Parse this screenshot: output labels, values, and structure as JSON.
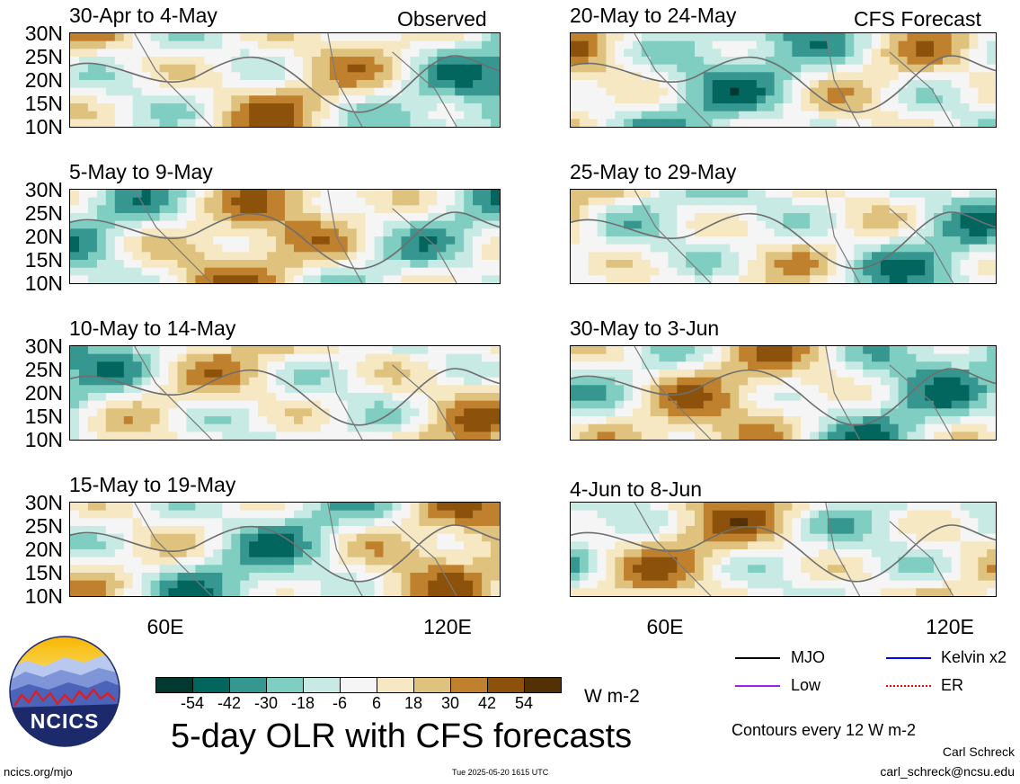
{
  "panels": [
    {
      "id": "p1",
      "date": "30-Apr to 4-May",
      "tag": "Observed"
    },
    {
      "id": "p2",
      "date": "5-May to 9-May",
      "tag": ""
    },
    {
      "id": "p3",
      "date": "10-May to 14-May",
      "tag": ""
    },
    {
      "id": "p4",
      "date": "15-May to 19-May",
      "tag": ""
    },
    {
      "id": "p5",
      "date": "20-May to 24-May",
      "tag": "CFS Forecast"
    },
    {
      "id": "p6",
      "date": "25-May to 29-May",
      "tag": ""
    },
    {
      "id": "p7",
      "date": "30-May to 3-Jun",
      "tag": ""
    },
    {
      "id": "p8",
      "date": "4-Jun to 8-Jun",
      "tag": ""
    }
  ],
  "lat_labels": [
    "30N",
    "25N",
    "20N",
    "15N",
    "10N"
  ],
  "lon_labels": [
    "60E",
    "120E"
  ],
  "colorbar": {
    "ticks": [
      "-54",
      "-42",
      "-30",
      "-18",
      "-6",
      "6",
      "18",
      "30",
      "42",
      "54"
    ],
    "colors": [
      "#01382f",
      "#02665e",
      "#35978f",
      "#80cdc1",
      "#c7eae5",
      "#f5f5f5",
      "#f6e8c3",
      "#dfc27d",
      "#bf812d",
      "#8c510a",
      "#543005"
    ],
    "units": "W m-2"
  },
  "legend": {
    "items": [
      {
        "label": "MJO",
        "color": "#000000",
        "style": "solid"
      },
      {
        "label": "Kelvin x2",
        "color": "#0000ee",
        "style": "solid"
      },
      {
        "label": "Low",
        "color": "#a020f0",
        "style": "solid"
      },
      {
        "label": "ER",
        "color": "#ee0000",
        "style": "dotted"
      }
    ],
    "contours_note": "Contours every 12 W m-2"
  },
  "title": "5-day OLR with CFS forecasts",
  "footer": {
    "url": "ncics.org/mjo",
    "timestamp": "Tue 2025-05-20 1615 UTC",
    "author": "Carl Schreck",
    "email": "carl_schreck@ncsu.edu"
  },
  "logo": {
    "text": "NCICS"
  }
}
